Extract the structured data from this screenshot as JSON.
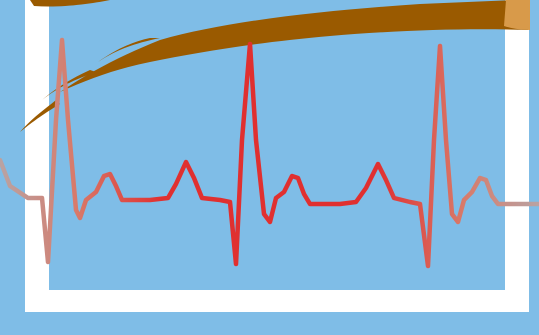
{
  "colors": {
    "background": "#7fbde7",
    "frame": "#ffffff",
    "panel": "#7fbde7",
    "brush": "#9a5a00",
    "brush_highlight": "#d89a4a",
    "ecg_faded": "#b9a3a3",
    "ecg_mid": "#d87a6a",
    "ecg_strong": "#e03030"
  },
  "icons": {
    "frame": "picture-frame-icon",
    "brush": "paint-brush-stroke-icon",
    "ecg": "heartbeat-line-icon"
  }
}
